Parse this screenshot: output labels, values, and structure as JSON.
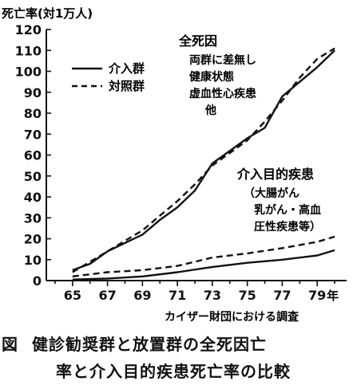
{
  "chart_data": {
    "type": "line",
    "ylabel": "死亡率(対1万人)",
    "xlabel_unit": "年",
    "source": "カイザー財団における調査",
    "ylim": [
      0,
      120
    ],
    "yticks": [
      0,
      10,
      20,
      30,
      40,
      50,
      60,
      70,
      80,
      90,
      100,
      110,
      120
    ],
    "xlim": [
      1963.5,
      1980.5
    ],
    "xticks": [
      {
        "value": 1965,
        "label": "65"
      },
      {
        "value": 1967,
        "label": "67"
      },
      {
        "value": 1969,
        "label": "69"
      },
      {
        "value": 1971,
        "label": "71"
      },
      {
        "value": 1973,
        "label": "73"
      },
      {
        "value": 1975,
        "label": "75"
      },
      {
        "value": 1977,
        "label": "77"
      },
      {
        "value": 1979,
        "label": "79"
      }
    ],
    "series": [
      {
        "name": "介入群",
        "group": "all",
        "style": "solid",
        "points": [
          [
            1965,
            5
          ],
          [
            1966,
            8
          ],
          [
            1967,
            14
          ],
          [
            1968,
            18
          ],
          [
            1969,
            22
          ],
          [
            1970,
            29
          ],
          [
            1971,
            35
          ],
          [
            1972,
            43
          ],
          [
            1973,
            56
          ],
          [
            1974,
            62
          ],
          [
            1975,
            68
          ],
          [
            1976,
            73
          ],
          [
            1977,
            88
          ],
          [
            1978,
            95
          ],
          [
            1979,
            102
          ],
          [
            1980,
            110
          ]
        ]
      },
      {
        "name": "対照群",
        "group": "all",
        "style": "dashed",
        "points": [
          [
            1965,
            4
          ],
          [
            1966,
            9
          ],
          [
            1967,
            14
          ],
          [
            1968,
            19
          ],
          [
            1969,
            24
          ],
          [
            1970,
            31
          ],
          [
            1971,
            38
          ],
          [
            1972,
            46
          ],
          [
            1973,
            55
          ],
          [
            1974,
            61
          ],
          [
            1975,
            67
          ],
          [
            1976,
            76
          ],
          [
            1977,
            86
          ],
          [
            1978,
            97
          ],
          [
            1979,
            106
          ],
          [
            1980,
            111
          ]
        ]
      },
      {
        "name": "介入群",
        "group": "specific",
        "style": "solid",
        "points": [
          [
            1965,
            0.5
          ],
          [
            1967,
            1
          ],
          [
            1969,
            2
          ],
          [
            1971,
            4
          ],
          [
            1973,
            6.5
          ],
          [
            1975,
            8.5
          ],
          [
            1977,
            10
          ],
          [
            1979,
            12
          ],
          [
            1980,
            14.5
          ]
        ]
      },
      {
        "name": "対照群",
        "group": "specific",
        "style": "dashed",
        "points": [
          [
            1965,
            2
          ],
          [
            1967,
            4
          ],
          [
            1969,
            5
          ],
          [
            1971,
            7
          ],
          [
            1973,
            11
          ],
          [
            1975,
            13
          ],
          [
            1977,
            15.5
          ],
          [
            1979,
            18.5
          ],
          [
            1980,
            21
          ]
        ]
      }
    ],
    "legend": [
      {
        "label": "介入群",
        "style": "solid"
      },
      {
        "label": "対照群",
        "style": "dashed"
      }
    ],
    "annotations": {
      "all_title": "全死因",
      "all_lines": [
        "両群に差無し",
        "健康状態",
        "虚血性心疾患",
        "他"
      ],
      "specific_title": "介入目的疾患",
      "specific_lines": [
        "（大腸がん",
        "乳がん・高血",
        "圧性疾患等）"
      ]
    }
  },
  "caption": {
    "label": "図",
    "line1": "健診勧奨群と放置群の全死因亡",
    "line2": "率と介入目的疾患死亡率の比較"
  },
  "colors": {
    "ink": "#111111",
    "background": "#ffffff"
  }
}
